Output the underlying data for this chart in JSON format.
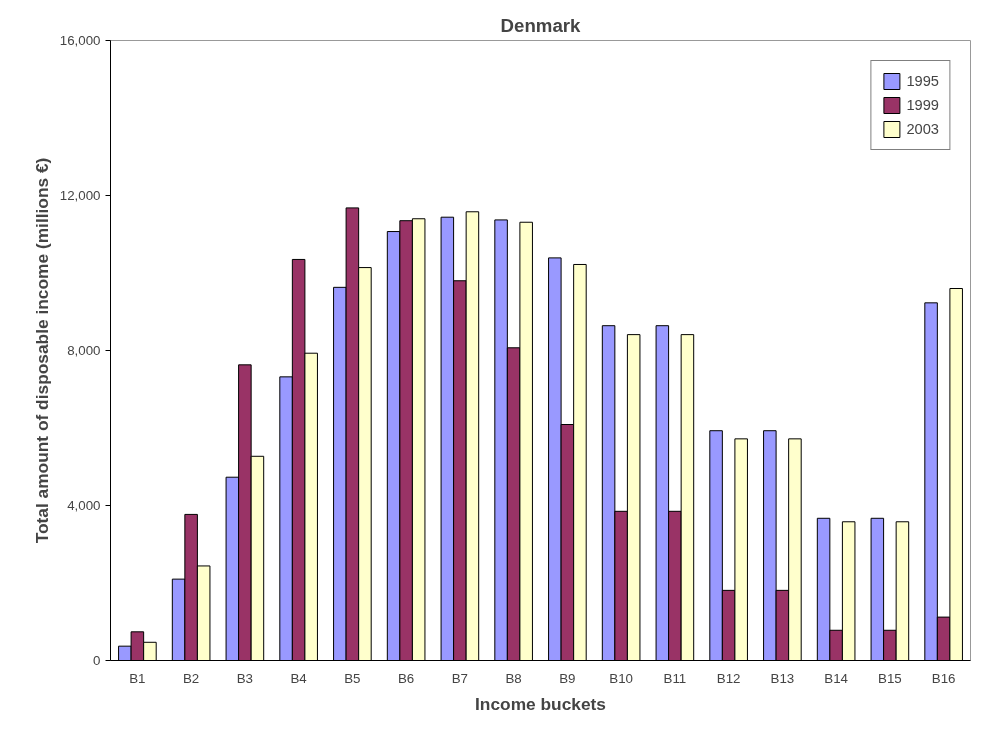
{
  "chart_data": {
    "type": "bar",
    "title": "Denmark",
    "xlabel": "Income buckets",
    "ylabel": "Total amount of disposable income (millions €)",
    "categories": [
      "B1",
      "B2",
      "B3",
      "B4",
      "B5",
      "B6",
      "B7",
      "B8",
      "B9",
      "B10",
      "B11",
      "B12",
      "B13",
      "B14",
      "B15",
      "B16"
    ],
    "series": [
      {
        "name": "1995",
        "color": "#9999ff",
        "values": [
          370,
          2100,
          4730,
          7320,
          9630,
          11070,
          11440,
          11370,
          10390,
          8640,
          8640,
          5930,
          5930,
          3670,
          3670,
          9230
        ]
      },
      {
        "name": "1999",
        "color": "#993366",
        "values": [
          740,
          3770,
          7630,
          10350,
          11680,
          11350,
          9800,
          8070,
          6090,
          3850,
          3850,
          1810,
          1810,
          780,
          780,
          1120
        ]
      },
      {
        "name": "2003",
        "color": "#ffffcc",
        "values": [
          470,
          2440,
          5270,
          7930,
          10140,
          11400,
          11580,
          11310,
          10220,
          8410,
          8410,
          5720,
          5720,
          3580,
          3580,
          9600
        ]
      }
    ],
    "ylim": [
      0,
      16000
    ],
    "yticks": [
      {
        "value": 0,
        "label": "0"
      },
      {
        "value": 4000,
        "label": "4,000"
      },
      {
        "value": 8000,
        "label": "8,000"
      },
      {
        "value": 12000,
        "label": "12,000"
      },
      {
        "value": 16000,
        "label": "16,000"
      }
    ],
    "grid": false,
    "legend": "top right"
  }
}
